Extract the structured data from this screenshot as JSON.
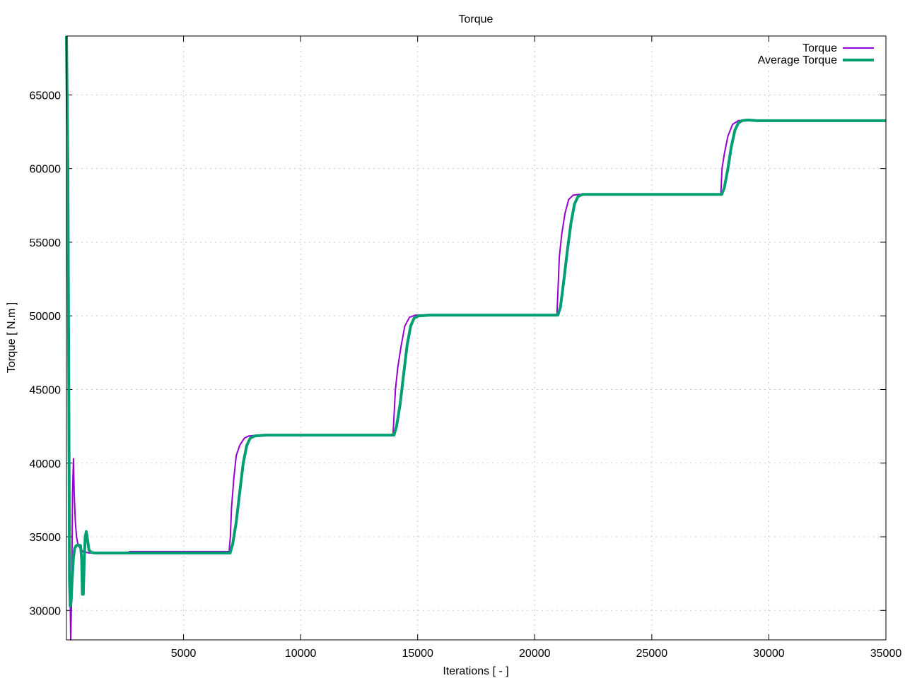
{
  "chart_data": {
    "type": "line",
    "title": "Torque",
    "xlabel": "Iterations [ - ]",
    "ylabel": "Torque [ N.m ]",
    "xlim": [
      0,
      35000
    ],
    "ylim": [
      28000,
      69000
    ],
    "x_ticks": [
      5000,
      10000,
      15000,
      20000,
      25000,
      30000,
      35000
    ],
    "y_ticks": [
      30000,
      35000,
      40000,
      45000,
      50000,
      55000,
      60000,
      65000
    ],
    "grid": true,
    "legend_position": "top-right",
    "series": [
      {
        "name": "Torque",
        "color": "#9400d3",
        "points": [
          [
            0,
            69000
          ],
          [
            60,
            60000
          ],
          [
            100,
            48000
          ],
          [
            150,
            32000
          ],
          [
            180,
            28000
          ],
          [
            220,
            31000
          ],
          [
            260,
            38000
          ],
          [
            300,
            40300
          ],
          [
            330,
            38000
          ],
          [
            380,
            36000
          ],
          [
            430,
            35000
          ],
          [
            500,
            34400
          ],
          [
            600,
            34200
          ],
          [
            700,
            34000
          ],
          [
            800,
            33950
          ],
          [
            1000,
            33900
          ],
          [
            2000,
            33900
          ],
          [
            2600,
            33900
          ],
          [
            2700,
            34000
          ],
          [
            6950,
            34000
          ],
          [
            7000,
            35000
          ],
          [
            7050,
            37000
          ],
          [
            7150,
            39000
          ],
          [
            7250,
            40500
          ],
          [
            7400,
            41200
          ],
          [
            7600,
            41700
          ],
          [
            7800,
            41850
          ],
          [
            8200,
            41900
          ],
          [
            9000,
            41900
          ],
          [
            13950,
            41900
          ],
          [
            14000,
            43500
          ],
          [
            14050,
            45000
          ],
          [
            14150,
            46500
          ],
          [
            14300,
            48000
          ],
          [
            14450,
            49300
          ],
          [
            14650,
            49900
          ],
          [
            14900,
            50050
          ],
          [
            15200,
            50050
          ],
          [
            16000,
            50050
          ],
          [
            20950,
            50050
          ],
          [
            21000,
            52000
          ],
          [
            21050,
            54000
          ],
          [
            21150,
            55500
          ],
          [
            21300,
            57000
          ],
          [
            21450,
            57900
          ],
          [
            21650,
            58200
          ],
          [
            21900,
            58250
          ],
          [
            22500,
            58250
          ],
          [
            27950,
            58250
          ],
          [
            28000,
            60000
          ],
          [
            28100,
            61000
          ],
          [
            28250,
            62200
          ],
          [
            28450,
            63000
          ],
          [
            28700,
            63250
          ],
          [
            29000,
            63300
          ],
          [
            29500,
            63250
          ],
          [
            35000,
            63250
          ]
        ]
      },
      {
        "name": "Average Torque",
        "color": "#009e73",
        "points": [
          [
            0,
            69000
          ],
          [
            60,
            60000
          ],
          [
            100,
            45000
          ],
          [
            130,
            32000
          ],
          [
            160,
            30300
          ],
          [
            200,
            30600
          ],
          [
            240,
            32000
          ],
          [
            300,
            33600
          ],
          [
            350,
            34200
          ],
          [
            420,
            34400
          ],
          [
            500,
            34450
          ],
          [
            600,
            34400
          ],
          [
            650,
            33500
          ],
          [
            680,
            31100
          ],
          [
            720,
            31100
          ],
          [
            760,
            33500
          ],
          [
            800,
            35000
          ],
          [
            850,
            35350
          ],
          [
            900,
            34800
          ],
          [
            960,
            34100
          ],
          [
            1050,
            33950
          ],
          [
            1200,
            33900
          ],
          [
            3000,
            33900
          ],
          [
            6990,
            33900
          ],
          [
            7100,
            34500
          ],
          [
            7250,
            36000
          ],
          [
            7400,
            38000
          ],
          [
            7550,
            40000
          ],
          [
            7700,
            41200
          ],
          [
            7850,
            41700
          ],
          [
            8050,
            41850
          ],
          [
            8500,
            41900
          ],
          [
            13990,
            41900
          ],
          [
            14100,
            42500
          ],
          [
            14250,
            44000
          ],
          [
            14400,
            46000
          ],
          [
            14550,
            48000
          ],
          [
            14700,
            49300
          ],
          [
            14850,
            49850
          ],
          [
            15050,
            50000
          ],
          [
            15500,
            50050
          ],
          [
            20990,
            50050
          ],
          [
            21100,
            50600
          ],
          [
            21250,
            52500
          ],
          [
            21400,
            54500
          ],
          [
            21550,
            56300
          ],
          [
            21700,
            57600
          ],
          [
            21850,
            58100
          ],
          [
            22050,
            58250
          ],
          [
            22500,
            58250
          ],
          [
            27990,
            58250
          ],
          [
            28100,
            58700
          ],
          [
            28250,
            60000
          ],
          [
            28400,
            61500
          ],
          [
            28550,
            62600
          ],
          [
            28700,
            63100
          ],
          [
            28850,
            63250
          ],
          [
            29100,
            63300
          ],
          [
            29500,
            63250
          ],
          [
            35000,
            63250
          ]
        ]
      }
    ]
  }
}
